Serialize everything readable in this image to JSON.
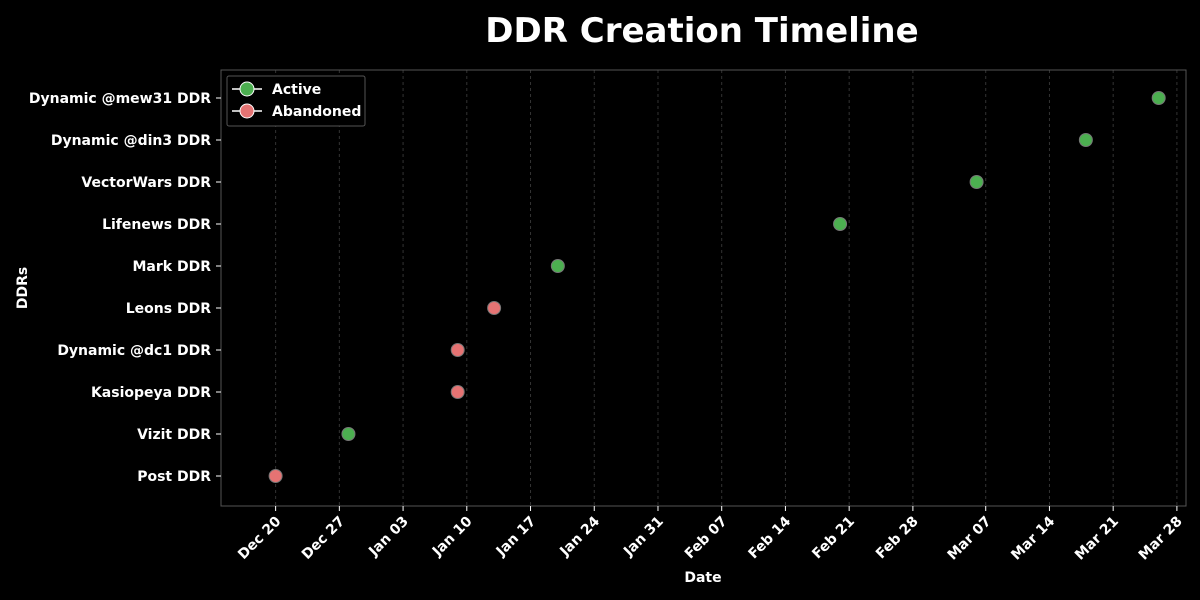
{
  "chart_data": {
    "type": "scatter",
    "title": "DDR Creation Timeline",
    "xlabel": "Date",
    "ylabel": "DDRs",
    "x_type": "date",
    "xlim": [
      "2023-12-14",
      "2024-03-29"
    ],
    "x_ticks": [
      "2023-12-20",
      "2023-12-27",
      "2024-01-03",
      "2024-01-10",
      "2024-01-17",
      "2024-01-24",
      "2024-01-31",
      "2024-02-07",
      "2024-02-14",
      "2024-02-21",
      "2024-02-28",
      "2024-03-07",
      "2024-03-14",
      "2024-03-21",
      "2024-03-28"
    ],
    "x_tick_labels": [
      "Dec 20",
      "Dec 27",
      "Jan 03",
      "Jan 10",
      "Jan 17",
      "Jan 24",
      "Jan 31",
      "Feb 07",
      "Feb 14",
      "Feb 21",
      "Feb 28",
      "Mar 07",
      "Mar 14",
      "Mar 21",
      "Mar 28"
    ],
    "categories": [
      "Post DDR",
      "Vizit DDR",
      "Kasiopeya DDR",
      "Dynamic @dc1 DDR",
      "Leons DDR",
      "Mark DDR",
      "Lifenews DDR",
      "VectorWars DDR",
      "Dynamic @din3 DDR",
      "Dynamic @mew31 DDR"
    ],
    "points": [
      {
        "name": "Post DDR",
        "date": "2023-12-20",
        "status": "Abandoned"
      },
      {
        "name": "Vizit DDR",
        "date": "2023-12-28",
        "status": "Active"
      },
      {
        "name": "Kasiopeya DDR",
        "date": "2024-01-09",
        "status": "Abandoned"
      },
      {
        "name": "Dynamic @dc1 DDR",
        "date": "2024-01-09",
        "status": "Abandoned"
      },
      {
        "name": "Leons DDR",
        "date": "2024-01-13",
        "status": "Abandoned"
      },
      {
        "name": "Mark DDR",
        "date": "2024-01-20",
        "status": "Active"
      },
      {
        "name": "Lifenews DDR",
        "date": "2024-02-20",
        "status": "Active"
      },
      {
        "name": "VectorWars DDR",
        "date": "2024-03-06",
        "status": "Active"
      },
      {
        "name": "Dynamic @din3 DDR",
        "date": "2024-03-18",
        "status": "Active"
      },
      {
        "name": "Dynamic @mew31 DDR",
        "date": "2024-03-26",
        "status": "Active"
      }
    ],
    "series": [
      {
        "name": "Active",
        "color": "#4caf50"
      },
      {
        "name": "Abandoned",
        "color": "#e57373"
      }
    ],
    "grid": "x-dashed",
    "legend": "top-left",
    "colors": {
      "background": "#000000",
      "frame": "#555555",
      "grid": "#333333",
      "text": "#ffffff"
    }
  }
}
